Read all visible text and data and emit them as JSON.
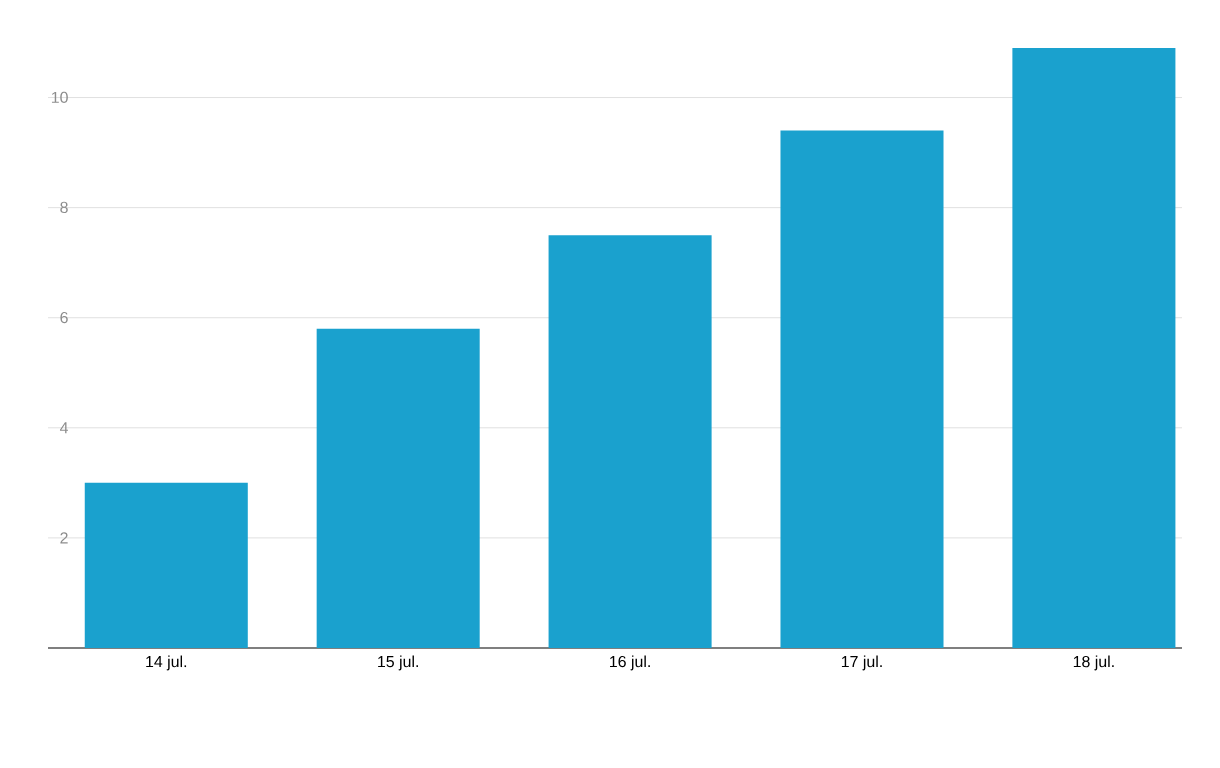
{
  "chart_data": {
    "type": "bar",
    "categories": [
      "14 jul.",
      "15 jul.",
      "16 jul.",
      "17 jul.",
      "18 jul."
    ],
    "values": [
      3.0,
      5.8,
      7.5,
      9.4,
      10.9
    ],
    "color": "#1aa1ce",
    "ylim": [
      0,
      10.9
    ],
    "yticks": [
      2,
      4,
      6,
      8,
      10
    ],
    "grid": "y"
  }
}
